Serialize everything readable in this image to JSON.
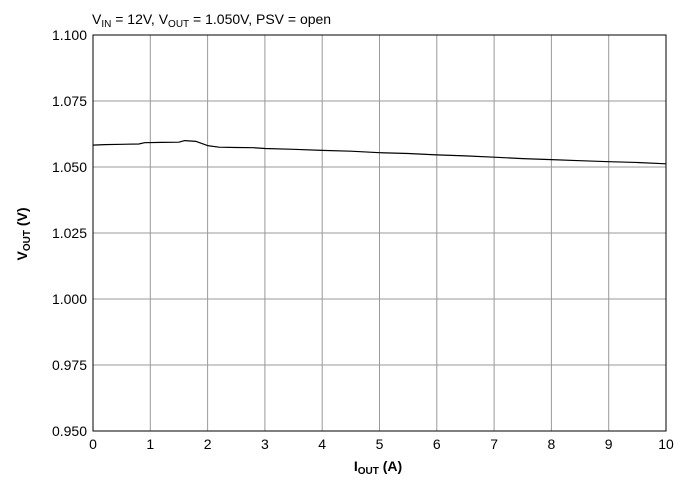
{
  "chart_data": {
    "type": "line",
    "conditions": {
      "vin_label": "V",
      "vin_sub": "IN",
      "vin_rest": " = 12V, ",
      "vout_label": "V",
      "vout_sub": "OUT",
      "vout_rest": " = 1.050V, PSV = open"
    },
    "xlabel": {
      "main": "I",
      "sub": "OUT",
      "rest": " (A)"
    },
    "ylabel": {
      "main": "V",
      "sub": "OUT",
      "rest": " (V)"
    },
    "xlim": [
      0,
      10
    ],
    "ylim": [
      0.95,
      1.1
    ],
    "grid": true,
    "x_ticks": [
      "0",
      "1",
      "2",
      "3",
      "4",
      "5",
      "6",
      "7",
      "8",
      "9",
      "10"
    ],
    "y_ticks": [
      "0.950",
      "0.975",
      "1.000",
      "1.025",
      "1.050",
      "1.075",
      "1.100"
    ],
    "series": [
      {
        "color": "#000000",
        "points": [
          [
            0.0,
            1.0583
          ],
          [
            0.2,
            1.0585
          ],
          [
            0.5,
            1.0586
          ],
          [
            0.8,
            1.0587
          ],
          [
            0.9,
            1.0592
          ],
          [
            1.2,
            1.0593
          ],
          [
            1.5,
            1.0594
          ],
          [
            1.6,
            1.06
          ],
          [
            1.8,
            1.0597
          ],
          [
            2.0,
            1.0581
          ],
          [
            2.2,
            1.0575
          ],
          [
            2.5,
            1.0574
          ],
          [
            2.8,
            1.0573
          ],
          [
            3.0,
            1.057
          ],
          [
            3.5,
            1.0567
          ],
          [
            4.0,
            1.0563
          ],
          [
            4.5,
            1.056
          ],
          [
            5.0,
            1.0554
          ],
          [
            5.5,
            1.0551
          ],
          [
            6.0,
            1.0546
          ],
          [
            6.5,
            1.0542
          ],
          [
            7.0,
            1.0537
          ],
          [
            7.5,
            1.0532
          ],
          [
            8.0,
            1.0528
          ],
          [
            8.5,
            1.0524
          ],
          [
            9.0,
            1.052
          ],
          [
            9.5,
            1.0517
          ],
          [
            10.0,
            1.0512
          ]
        ]
      }
    ]
  }
}
